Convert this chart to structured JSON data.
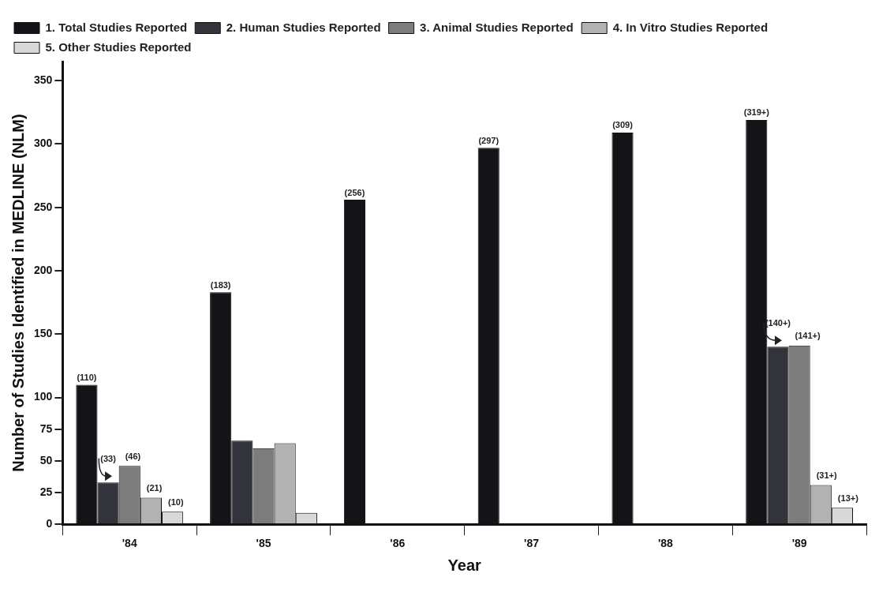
{
  "chart_data": {
    "type": "bar",
    "xlabel": "Year",
    "ylabel": "Number of Studies Identified in MEDLINE (NLM)",
    "categories": [
      "'84",
      "'85",
      "'86",
      "'87",
      "'88",
      "'89"
    ],
    "ylim": [
      0,
      365
    ],
    "yticks": [
      0,
      25,
      50,
      75,
      100,
      150,
      200,
      250,
      300,
      350
    ],
    "grid": false,
    "legend": "top left",
    "series": [
      {
        "name": "1. Total Studies Reported",
        "color": "#141418",
        "values": [
          110,
          183,
          256,
          297,
          309,
          319
        ],
        "value_labels": [
          "(110)",
          "(183)",
          "(256)",
          "(297)",
          "(309)",
          "(319+)"
        ]
      },
      {
        "name": "2. Human Studies Reported",
        "color": "#33333b",
        "values": [
          33,
          66,
          null,
          null,
          null,
          140
        ],
        "value_labels": [
          "(33)",
          null,
          null,
          null,
          null,
          "(140+)"
        ]
      },
      {
        "name": "3. Animal Studies Reported",
        "color": "#7c7c7c",
        "values": [
          46,
          60,
          null,
          null,
          null,
          141
        ],
        "value_labels": [
          "(46)",
          null,
          null,
          null,
          null,
          "(141+)"
        ]
      },
      {
        "name": "4. In Vitro Studies Reported",
        "color": "#b2b2b2",
        "values": [
          21,
          64,
          null,
          null,
          null,
          31
        ],
        "value_labels": [
          "(21)",
          null,
          null,
          null,
          null,
          "(31+)"
        ]
      },
      {
        "name": "5. Other Studies Reported",
        "color": "#d8d8d8",
        "values": [
          10,
          9,
          null,
          null,
          null,
          13
        ],
        "value_labels": [
          "(10)",
          null,
          null,
          null,
          null,
          "(13+)"
        ]
      }
    ]
  }
}
